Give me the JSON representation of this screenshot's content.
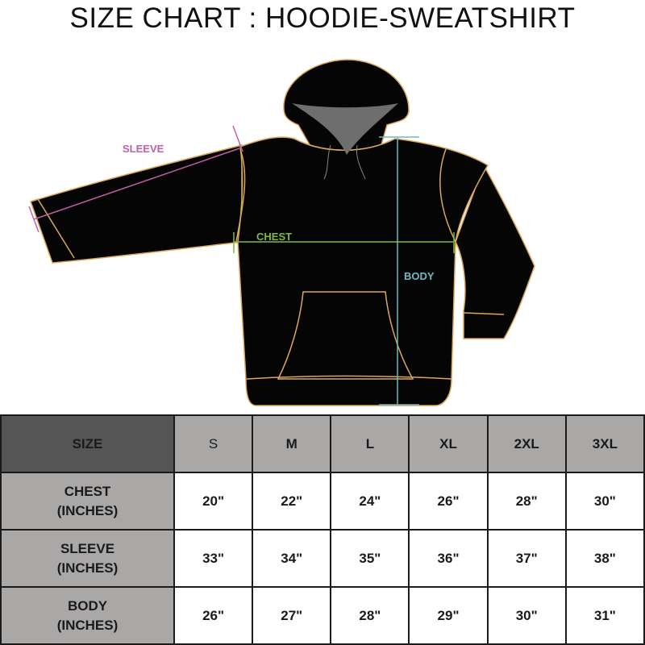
{
  "title": "SIZE CHART : HOODIE-SWEATSHIRT",
  "diagram": {
    "labels": {
      "sleeve": "SLEEVE",
      "chest": "CHEST",
      "body": "BODY"
    },
    "colors": {
      "garment": "#050505",
      "outline": "#d9a85a",
      "hood_lining": "#6e6e6e",
      "sleeve": "#c15fa8",
      "chest": "#7dbb3c",
      "body": "#6fb9c2"
    }
  },
  "table": {
    "header_label": "SIZE",
    "sizes": [
      "S",
      "M",
      "L",
      "XL",
      "2XL",
      "3XL"
    ],
    "rows": [
      {
        "label": "CHEST",
        "unit": "(INCHES)",
        "values": [
          "20\"",
          "22\"",
          "24\"",
          "26\"",
          "28\"",
          "30\""
        ]
      },
      {
        "label": "SLEEVE",
        "unit": "(INCHES)",
        "values": [
          "33\"",
          "34\"",
          "35\"",
          "36\"",
          "37\"",
          "38\""
        ]
      },
      {
        "label": "BODY",
        "unit": "(INCHES)",
        "values": [
          "26\"",
          "27\"",
          "28\"",
          "29\"",
          "30\"",
          "31\""
        ]
      }
    ]
  }
}
